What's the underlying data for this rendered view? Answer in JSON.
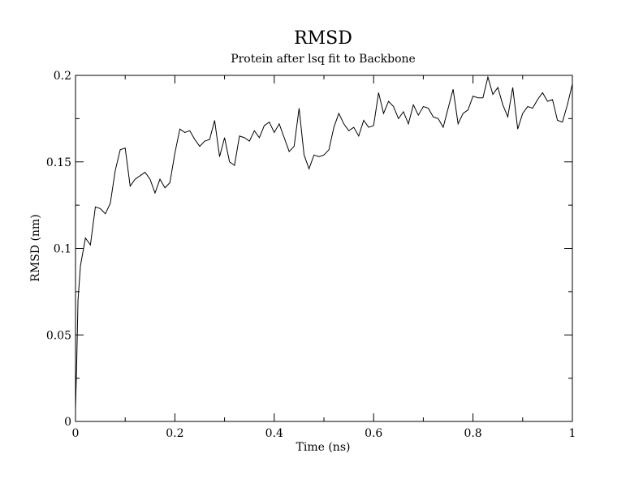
{
  "chart_data": {
    "type": "line",
    "title": "RMSD",
    "subtitle": "Protein after lsq fit to Backbone",
    "xlabel": "Time (ns)",
    "ylabel": "RMSD (nm)",
    "xlim": [
      0,
      1
    ],
    "ylim": [
      0,
      0.2
    ],
    "x_ticks": [
      "0",
      "0.2",
      "0.4",
      "0.6",
      "0.8",
      "1"
    ],
    "y_ticks": [
      "0",
      "0.05",
      "0.1",
      "0.15",
      "0.2"
    ],
    "grid": false,
    "colors": {
      "line": "#000000",
      "frame": "#000000",
      "background": "#ffffff"
    },
    "series": [
      {
        "x": [
          0,
          0.0025,
          0.005,
          0.01,
          0.02,
          0.03,
          0.04,
          0.05,
          0.06,
          0.07,
          0.08,
          0.09,
          0.1,
          0.11,
          0.12,
          0.13,
          0.14,
          0.15,
          0.16,
          0.17,
          0.18,
          0.19,
          0.2,
          0.21,
          0.22,
          0.23,
          0.24,
          0.25,
          0.26,
          0.27,
          0.28,
          0.29,
          0.3,
          0.31,
          0.32,
          0.33,
          0.34,
          0.35,
          0.36,
          0.37,
          0.38,
          0.39,
          0.4,
          0.41,
          0.42,
          0.43,
          0.44,
          0.45,
          0.46,
          0.47,
          0.48,
          0.49,
          0.5,
          0.51,
          0.52,
          0.53,
          0.54,
          0.55,
          0.56,
          0.57,
          0.58,
          0.59,
          0.6,
          0.61,
          0.62,
          0.63,
          0.64,
          0.65,
          0.66,
          0.67,
          0.68,
          0.69,
          0.7,
          0.71,
          0.72,
          0.73,
          0.74,
          0.75,
          0.76,
          0.77,
          0.78,
          0.79,
          0.8,
          0.81,
          0.82,
          0.83,
          0.84,
          0.85,
          0.86,
          0.87,
          0.88,
          0.89,
          0.9,
          0.91,
          0.92,
          0.93,
          0.94,
          0.95,
          0.96,
          0.97,
          0.98,
          0.99,
          1.0
        ],
        "y": [
          0.007,
          0.035,
          0.07,
          0.09,
          0.106,
          0.102,
          0.124,
          0.123,
          0.12,
          0.126,
          0.145,
          0.157,
          0.158,
          0.136,
          0.14,
          0.142,
          0.144,
          0.14,
          0.132,
          0.14,
          0.135,
          0.138,
          0.155,
          0.169,
          0.167,
          0.168,
          0.163,
          0.159,
          0.162,
          0.163,
          0.174,
          0.153,
          0.164,
          0.15,
          0.148,
          0.165,
          0.164,
          0.162,
          0.168,
          0.164,
          0.171,
          0.173,
          0.167,
          0.172,
          0.164,
          0.156,
          0.159,
          0.181,
          0.154,
          0.146,
          0.154,
          0.153,
          0.154,
          0.157,
          0.17,
          0.178,
          0.172,
          0.168,
          0.17,
          0.165,
          0.174,
          0.17,
          0.171,
          0.19,
          0.178,
          0.185,
          0.182,
          0.175,
          0.179,
          0.172,
          0.183,
          0.177,
          0.182,
          0.181,
          0.176,
          0.175,
          0.17,
          0.181,
          0.192,
          0.172,
          0.178,
          0.18,
          0.188,
          0.187,
          0.187,
          0.199,
          0.189,
          0.193,
          0.183,
          0.176,
          0.193,
          0.169,
          0.178,
          0.182,
          0.181,
          0.186,
          0.19,
          0.185,
          0.186,
          0.174,
          0.173,
          0.183,
          0.195
        ]
      }
    ]
  }
}
